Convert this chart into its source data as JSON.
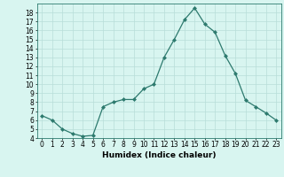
{
  "xlabel": "Humidex (Indice chaleur)",
  "ylabel": "",
  "x": [
    0,
    1,
    2,
    3,
    4,
    5,
    6,
    7,
    8,
    9,
    10,
    11,
    12,
    13,
    14,
    15,
    16,
    17,
    18,
    19,
    20,
    21,
    22,
    23
  ],
  "y": [
    6.5,
    6.0,
    5.0,
    4.5,
    4.2,
    4.3,
    7.5,
    8.0,
    8.3,
    8.3,
    9.5,
    10.0,
    13.0,
    15.0,
    17.2,
    18.5,
    16.7,
    15.8,
    13.2,
    11.2,
    8.2,
    7.5,
    6.8,
    6.0
  ],
  "line_color": "#2d7a6e",
  "marker": "D",
  "marker_size": 2.0,
  "xlim": [
    -0.5,
    23.5
  ],
  "ylim": [
    4,
    19
  ],
  "yticks": [
    4,
    5,
    6,
    7,
    8,
    9,
    10,
    11,
    12,
    13,
    14,
    15,
    16,
    17,
    18
  ],
  "xticks": [
    0,
    1,
    2,
    3,
    4,
    5,
    6,
    7,
    8,
    9,
    10,
    11,
    12,
    13,
    14,
    15,
    16,
    17,
    18,
    19,
    20,
    21,
    22,
    23
  ],
  "bg_color": "#d8f5f0",
  "grid_color": "#b8ddd8",
  "tick_fontsize": 5.5,
  "xlabel_fontsize": 6.5
}
